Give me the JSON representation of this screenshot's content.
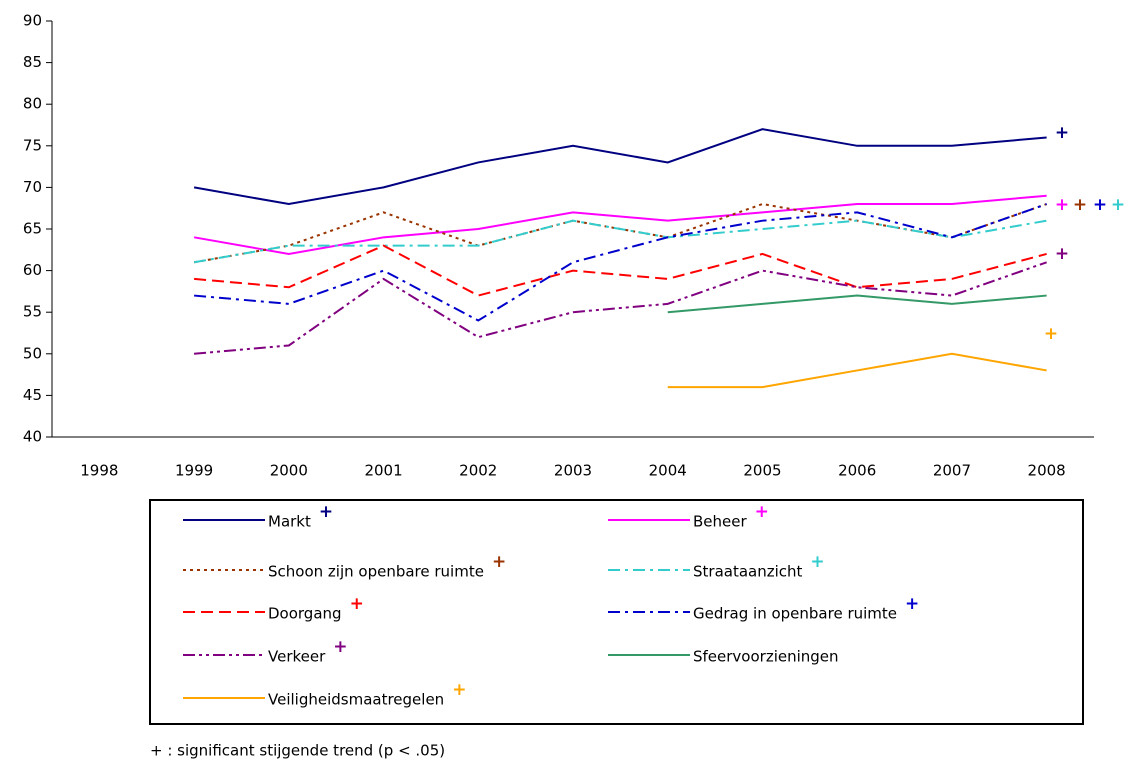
{
  "chart_data": {
    "type": "line",
    "categories": [
      "1998",
      "1999",
      "2000",
      "2001",
      "2002",
      "2003",
      "2004",
      "2005",
      "2006",
      "2007",
      "2008"
    ],
    "ylim": [
      40,
      90
    ],
    "yticks": [
      40,
      45,
      50,
      55,
      60,
      65,
      70,
      75,
      80,
      85,
      90
    ],
    "series": [
      {
        "name": "Markt",
        "color": "#000080",
        "style": "solid",
        "trend": "+",
        "values": [
          null,
          70,
          68,
          70,
          73,
          75,
          73,
          77,
          75,
          75,
          76
        ]
      },
      {
        "name": "Beheer",
        "color": "#ff00ff",
        "style": "solid",
        "trend": "+",
        "values": [
          null,
          64,
          62,
          64,
          65,
          67,
          66,
          67,
          68,
          68,
          69
        ]
      },
      {
        "name": "Schoon zijn openbare ruimte",
        "color": "#993300",
        "style": "dotted",
        "trend": "+",
        "values": [
          null,
          61,
          63,
          67,
          63,
          66,
          64,
          68,
          66,
          64,
          68
        ]
      },
      {
        "name": "Straataanzicht",
        "color": "#33cccc",
        "style": "dash-dot",
        "trend": "+",
        "values": [
          null,
          61,
          63,
          63,
          63,
          66,
          64,
          65,
          66,
          64,
          66
        ]
      },
      {
        "name": "Doorgang",
        "color": "#ff0000",
        "style": "dashed",
        "trend": "+",
        "values": [
          null,
          59,
          58,
          63,
          57,
          60,
          59,
          62,
          58,
          59,
          62
        ]
      },
      {
        "name": "Gedrag in openbare ruimte",
        "color": "#0000cc",
        "style": "dash-dot",
        "trend": "+",
        "values": [
          null,
          57,
          56,
          60,
          54,
          61,
          64,
          66,
          67,
          64,
          68
        ]
      },
      {
        "name": "Verkeer",
        "color": "#800080",
        "style": "dash-dot-dot",
        "trend": "+",
        "values": [
          null,
          50,
          51,
          59,
          52,
          55,
          56,
          60,
          58,
          57,
          61
        ]
      },
      {
        "name": "Sfeervoorzieningen",
        "color": "#339966",
        "style": "solid",
        "values": [
          null,
          null,
          null,
          null,
          null,
          null,
          55,
          56,
          57,
          56,
          57
        ]
      },
      {
        "name": "Veiligheidsmaatregelen",
        "color": "#ffa500",
        "style": "solid",
        "trend": "+",
        "values": [
          null,
          null,
          null,
          null,
          null,
          null,
          46,
          46,
          48,
          50,
          48
        ]
      }
    ],
    "note": "+ : significant stijgende trend (p < .05)"
  }
}
